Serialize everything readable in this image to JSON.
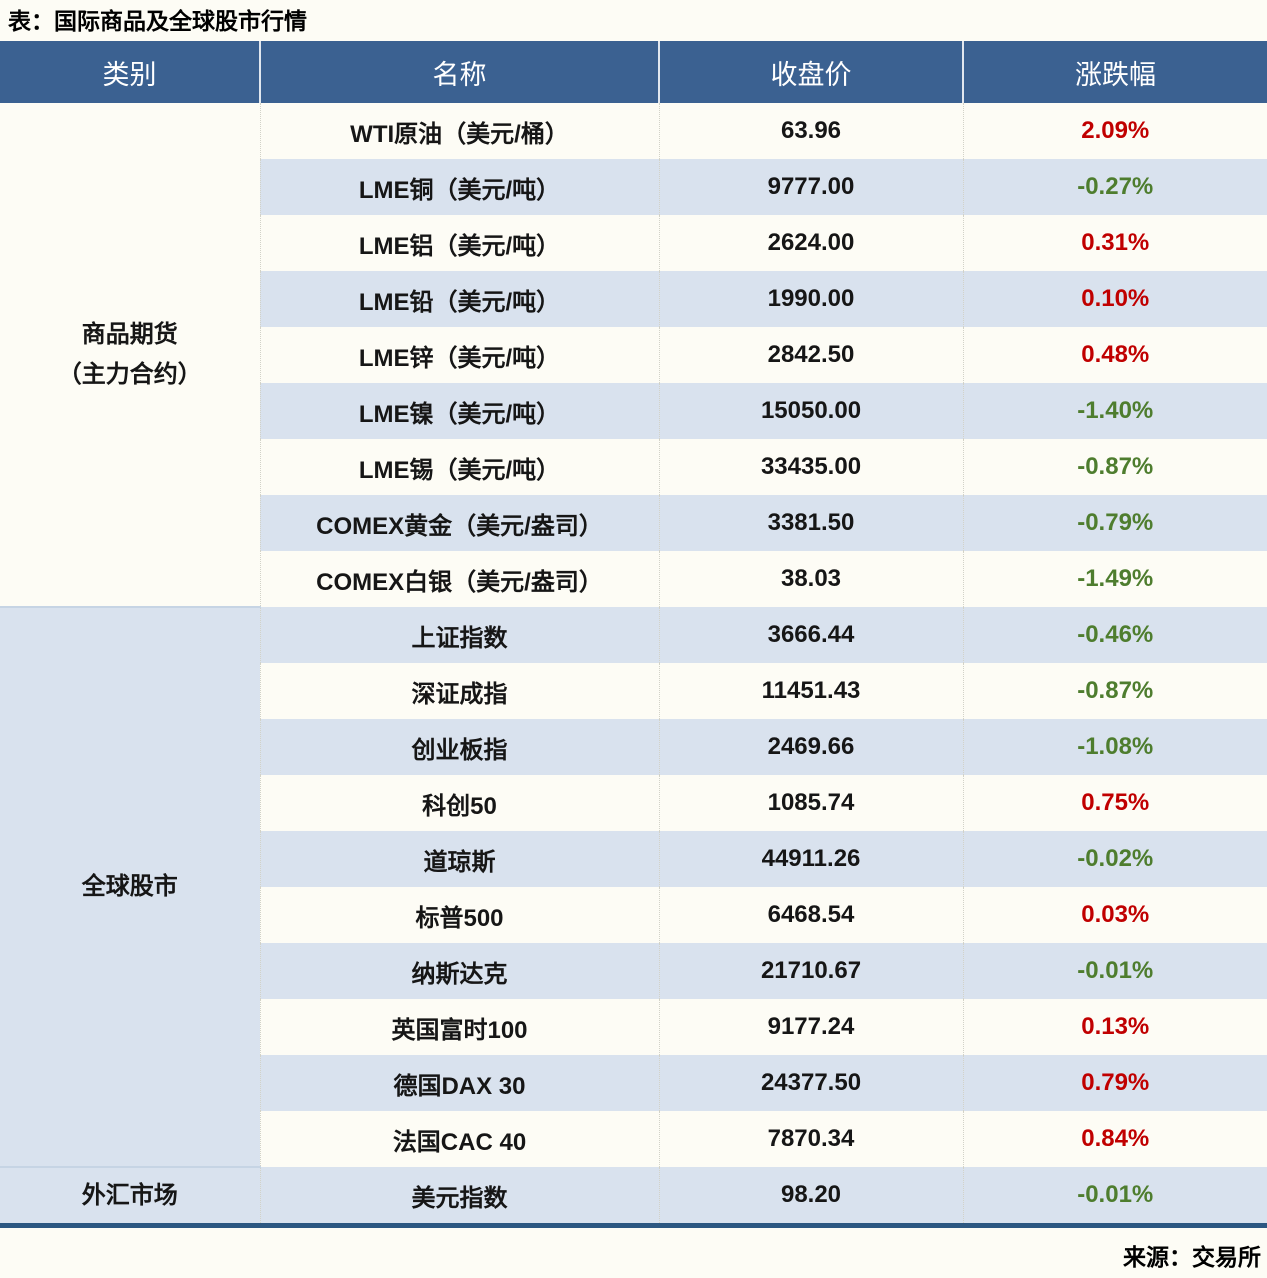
{
  "title": "表：国际商品及全球股市行情",
  "source": "来源：交易所",
  "colors": {
    "header_bg": "#3b6191",
    "header_text": "#ffffff",
    "row_alt_bg": "#d9e2ee",
    "row_bg": "#fdfcf5",
    "up_red": "#c00000",
    "down_green": "#4e7d2e",
    "divider": "#c6d4e4",
    "bottom_rule": "#2c5781"
  },
  "table": {
    "headers": [
      "类别",
      "名称",
      "收盘价",
      "涨跌幅"
    ],
    "groups": [
      {
        "category_lines": [
          "商品期货",
          "（主力合约）"
        ],
        "rows": [
          {
            "name": "WTI原油（美元/桶）",
            "close": "63.96",
            "change": "2.09%"
          },
          {
            "name": "LME铜（美元/吨）",
            "close": "9777.00",
            "change": "-0.27%"
          },
          {
            "name": "LME铝（美元/吨）",
            "close": "2624.00",
            "change": "0.31%"
          },
          {
            "name": "LME铅（美元/吨）",
            "close": "1990.00",
            "change": "0.10%"
          },
          {
            "name": "LME锌（美元/吨）",
            "close": "2842.50",
            "change": "0.48%"
          },
          {
            "name": "LME镍（美元/吨）",
            "close": "15050.00",
            "change": "-1.40%"
          },
          {
            "name": "LME锡（美元/吨）",
            "close": "33435.00",
            "change": "-0.87%"
          },
          {
            "name": "COMEX黄金（美元/盎司）",
            "close": "3381.50",
            "change": "-0.79%"
          },
          {
            "name": "COMEX白银（美元/盎司）",
            "close": "38.03",
            "change": "-1.49%"
          }
        ]
      },
      {
        "category_lines": [
          "全球股市"
        ],
        "rows": [
          {
            "name": "上证指数",
            "close": "3666.44",
            "change": "-0.46%"
          },
          {
            "name": "深证成指",
            "close": "11451.43",
            "change": "-0.87%"
          },
          {
            "name": "创业板指",
            "close": "2469.66",
            "change": "-1.08%"
          },
          {
            "name": "科创50",
            "close": "1085.74",
            "change": "0.75%"
          },
          {
            "name": "道琼斯",
            "close": "44911.26",
            "change": "-0.02%"
          },
          {
            "name": "标普500",
            "close": "6468.54",
            "change": "0.03%"
          },
          {
            "name": "纳斯达克",
            "close": "21710.67",
            "change": "-0.01%"
          },
          {
            "name": "英国富时100",
            "close": "9177.24",
            "change": "0.13%"
          },
          {
            "name": "德国DAX 30",
            "close": "24377.50",
            "change": "0.79%"
          },
          {
            "name": "法国CAC 40",
            "close": "7870.34",
            "change": "0.84%"
          }
        ]
      },
      {
        "category_lines": [
          "外汇市场"
        ],
        "rows": [
          {
            "name": "美元指数",
            "close": "98.20",
            "change": "-0.01%"
          }
        ]
      }
    ]
  },
  "chart_data": {
    "type": "table",
    "title": "国际商品及全球股市行情",
    "columns": [
      "类别",
      "名称",
      "收盘价",
      "涨跌幅"
    ],
    "rows": [
      [
        "商品期货（主力合约）",
        "WTI原油（美元/桶）",
        63.96,
        "2.09%"
      ],
      [
        "商品期货（主力合约）",
        "LME铜（美元/吨）",
        9777.0,
        "-0.27%"
      ],
      [
        "商品期货（主力合约）",
        "LME铝（美元/吨）",
        2624.0,
        "0.31%"
      ],
      [
        "商品期货（主力合约）",
        "LME铅（美元/吨）",
        1990.0,
        "0.10%"
      ],
      [
        "商品期货（主力合约）",
        "LME锌（美元/吨）",
        2842.5,
        "0.48%"
      ],
      [
        "商品期货（主力合约）",
        "LME镍（美元/吨）",
        15050.0,
        "-1.40%"
      ],
      [
        "商品期货（主力合约）",
        "LME锡（美元/吨）",
        33435.0,
        "-0.87%"
      ],
      [
        "商品期货（主力合约）",
        "COMEX黄金（美元/盎司）",
        3381.5,
        "-0.79%"
      ],
      [
        "商品期货（主力合约）",
        "COMEX白银（美元/盎司）",
        38.03,
        "-1.49%"
      ],
      [
        "全球股市",
        "上证指数",
        3666.44,
        "-0.46%"
      ],
      [
        "全球股市",
        "深证成指",
        11451.43,
        "-0.87%"
      ],
      [
        "全球股市",
        "创业板指",
        2469.66,
        "-1.08%"
      ],
      [
        "全球股市",
        "科创50",
        1085.74,
        "0.75%"
      ],
      [
        "全球股市",
        "道琼斯",
        44911.26,
        "-0.02%"
      ],
      [
        "全球股市",
        "标普500",
        6468.54,
        "0.03%"
      ],
      [
        "全球股市",
        "纳斯达克",
        21710.67,
        "-0.01%"
      ],
      [
        "全球股市",
        "英国富时100",
        9177.24,
        "0.13%"
      ],
      [
        "全球股市",
        "德国DAX 30",
        24377.5,
        "0.79%"
      ],
      [
        "全球股市",
        "法国CAC 40",
        7870.34,
        "0.84%"
      ],
      [
        "外汇市场",
        "美元指数",
        98.2,
        "-0.01%"
      ]
    ]
  }
}
